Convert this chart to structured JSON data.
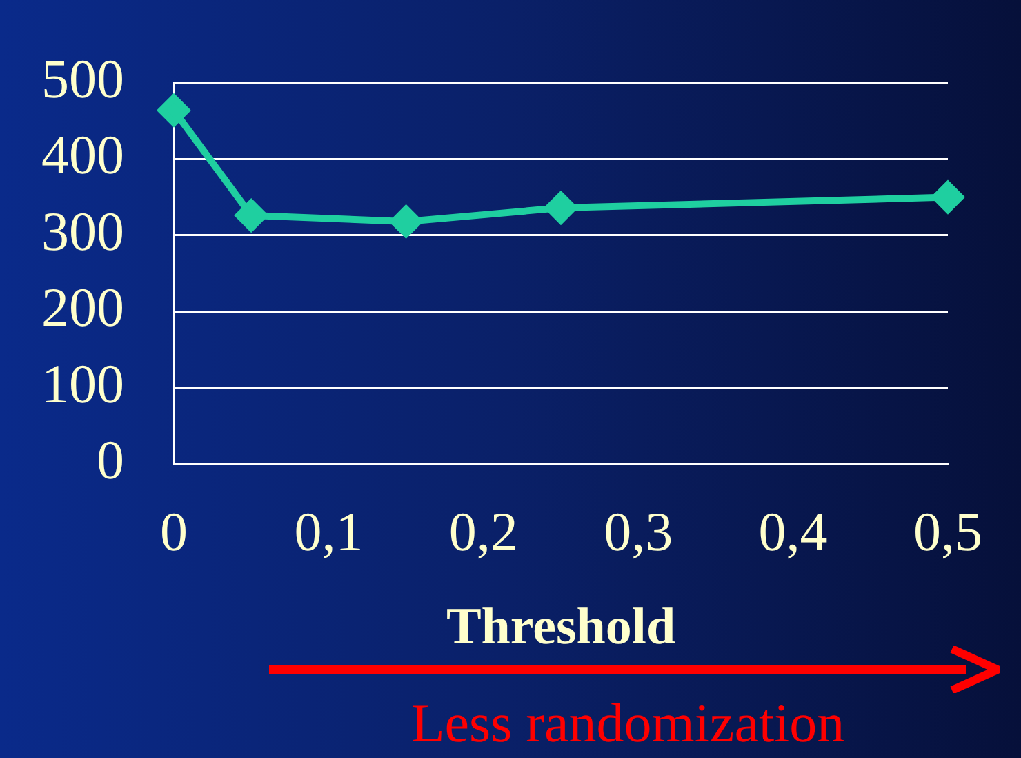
{
  "chart_data": {
    "type": "line",
    "xlabel": "Threshold",
    "x": [
      0,
      0.05,
      0.15,
      0.25,
      0.5
    ],
    "series": [
      {
        "color": "#1fcfa0",
        "values": [
          464,
          326,
          318,
          336,
          350
        ]
      }
    ],
    "xlim": [
      0,
      0.5
    ],
    "xticks": [
      {
        "value": 0,
        "label": "0"
      },
      {
        "value": 0.1,
        "label": "0,1"
      },
      {
        "value": 0.2,
        "label": "0,2"
      },
      {
        "value": 0.3,
        "label": "0,3"
      },
      {
        "value": 0.4,
        "label": "0,4"
      },
      {
        "value": 0.5,
        "label": "0,5"
      }
    ],
    "ylim": [
      0,
      500
    ],
    "yticks": [
      0,
      100,
      200,
      300,
      400,
      500
    ],
    "grid": "y",
    "marker": "diamond",
    "line_style": "solid",
    "legend": false,
    "annotations": [
      "Less randomization"
    ]
  }
}
